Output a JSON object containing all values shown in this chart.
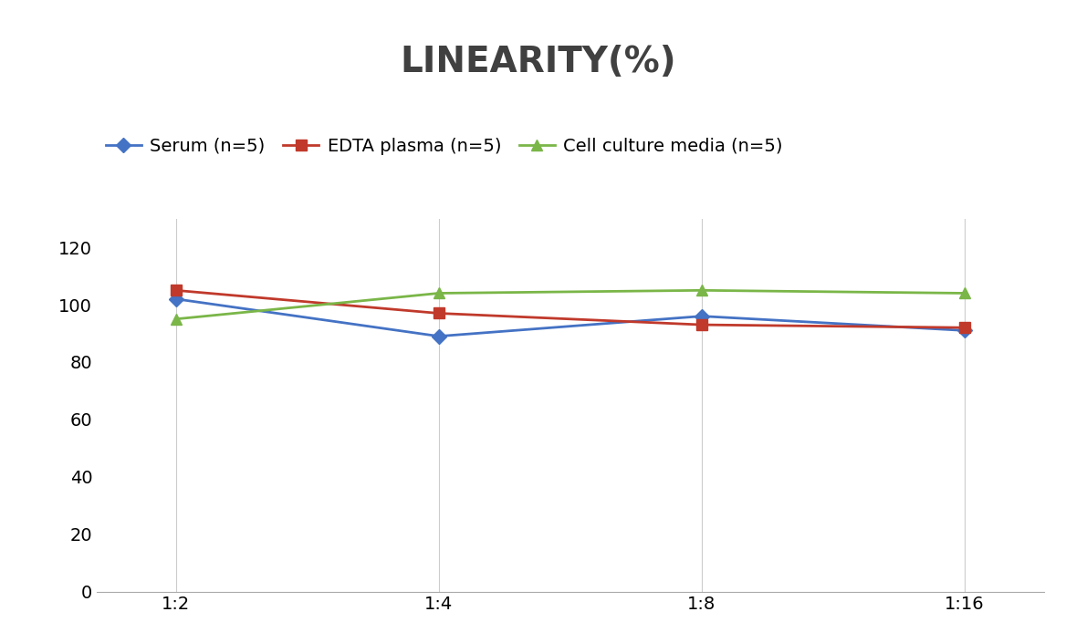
{
  "title": "LINEARITY(%)",
  "x_labels": [
    "1:2",
    "1:4",
    "1:8",
    "1:16"
  ],
  "x_positions": [
    0,
    1,
    2,
    3
  ],
  "series": [
    {
      "name": "Serum (n=5)",
      "values": [
        102,
        89,
        96,
        91
      ],
      "color": "#4472C4",
      "marker": "D",
      "linewidth": 2,
      "markersize": 8
    },
    {
      "name": "EDTA plasma (n=5)",
      "values": [
        105,
        97,
        93,
        92
      ],
      "color": "#C0392B",
      "marker": "s",
      "linewidth": 2,
      "markersize": 8
    },
    {
      "name": "Cell culture media (n=5)",
      "values": [
        95,
        104,
        105,
        104
      ],
      "color": "#7AB648",
      "marker": "^",
      "linewidth": 2,
      "markersize": 8
    }
  ],
  "ylim": [
    0,
    130
  ],
  "yticks": [
    0,
    20,
    40,
    60,
    80,
    100,
    120
  ],
  "background_color": "#ffffff",
  "grid_color": "#cccccc",
  "title_fontsize": 28,
  "legend_fontsize": 14,
  "tick_fontsize": 14,
  "title_color": "#404040"
}
